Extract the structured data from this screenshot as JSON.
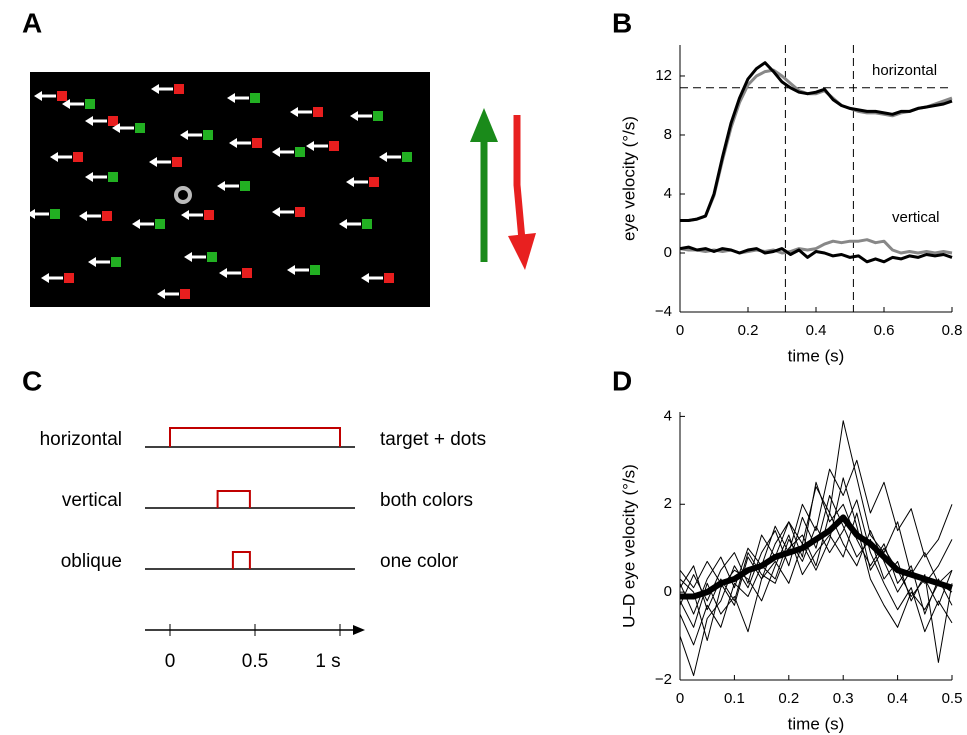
{
  "panel_a": {
    "label": "A"
  },
  "panel_c": {
    "label": "C",
    "xlim": [
      -0.15,
      1.15
    ],
    "xticks": [
      0,
      0.5,
      {
        "value": 1,
        "label": "1 s"
      }
    ],
    "rows": [
      {
        "label": "horizontal",
        "description": "target + dots",
        "on": 0,
        "off": 1
      },
      {
        "label": "vertical",
        "description": "both colors",
        "on": 0.28,
        "off": 0.47
      },
      {
        "label": "oblique",
        "description": "one color",
        "on": 0.37,
        "off": 0.47
      }
    ]
  },
  "chart_data": [
    {
      "type": "line",
      "label": "B",
      "xlabel": "time (s)",
      "ylabel": "eye velocity (°/s)",
      "xlim": [
        0,
        0.8
      ],
      "ylim": [
        -4,
        14.1
      ],
      "xticks": [
        0,
        0.2,
        0.4,
        0.6,
        0.8
      ],
      "yticks": [
        {
          "value": -4,
          "label": "−4"
        },
        0,
        4,
        8,
        12
      ],
      "hlines": [
        11.2
      ],
      "vlines": [
        0.31,
        0.51
      ],
      "annotations": [
        "horizontal",
        "vertical"
      ],
      "x": [
        0,
        0.025,
        0.05,
        0.075,
        0.1,
        0.125,
        0.15,
        0.175,
        0.2,
        0.225,
        0.25,
        0.275,
        0.3,
        0.325,
        0.35,
        0.375,
        0.4,
        0.425,
        0.45,
        0.475,
        0.5,
        0.525,
        0.55,
        0.575,
        0.6,
        0.625,
        0.65,
        0.675,
        0.7,
        0.725,
        0.75,
        0.775,
        0.8
      ],
      "series": [
        {
          "color": "#888888",
          "width": 3,
          "values": [
            2.2,
            2.2,
            2.3,
            2.5,
            3.9,
            6.3,
            8.5,
            10.2,
            11.4,
            12.0,
            12.3,
            12.4,
            12.0,
            11.5,
            11.0,
            10.8,
            10.8,
            11.0,
            10.5,
            10.0,
            9.8,
            9.6,
            9.5,
            9.5,
            9.4,
            9.3,
            9.5,
            9.6,
            9.8,
            9.9,
            10.1,
            10.3,
            10.5
          ]
        },
        {
          "color": "#000000",
          "width": 3,
          "values": [
            2.2,
            2.2,
            2.3,
            2.5,
            4.0,
            6.5,
            8.8,
            10.5,
            11.8,
            12.5,
            12.9,
            12.3,
            11.6,
            11.2,
            10.9,
            10.8,
            10.9,
            11.1,
            10.4,
            10.0,
            9.8,
            9.7,
            9.6,
            9.6,
            9.5,
            9.4,
            9.6,
            9.6,
            9.8,
            9.9,
            10.0,
            10.1,
            10.3
          ]
        },
        {
          "color": "#888888",
          "width": 3,
          "values": [
            0.3,
            0.2,
            0.2,
            0.1,
            0.2,
            0.1,
            0.2,
            0.0,
            0.1,
            0.2,
            0.1,
            0.2,
            0.0,
            0.1,
            0.3,
            0.2,
            0.3,
            0.6,
            0.8,
            0.7,
            0.8,
            0.8,
            0.9,
            0.7,
            0.8,
            0.2,
            0.0,
            0.1,
            0.0,
            0.1,
            0.0,
            0.1,
            0.0
          ]
        },
        {
          "color": "#000000",
          "width": 3,
          "values": [
            0.3,
            0.4,
            0.2,
            0.3,
            0.1,
            0.3,
            0.2,
            0.0,
            0.2,
            0.3,
            0.0,
            0.1,
            0.3,
            -0.1,
            0.2,
            -0.3,
            0.1,
            0.0,
            -0.2,
            -0.1,
            -0.3,
            -0.2,
            -0.6,
            -0.4,
            -0.6,
            -0.3,
            -0.4,
            -0.2,
            -0.3,
            -0.1,
            -0.2,
            -0.1,
            -0.3
          ]
        }
      ]
    },
    {
      "type": "line",
      "label": "D",
      "xlabel": "time (s)",
      "ylabel": "U–D eye velocity (°/s)",
      "xlim": [
        0,
        0.5
      ],
      "ylim": [
        -2,
        4.1
      ],
      "xticks": [
        0,
        0.1,
        0.2,
        0.3,
        0.4,
        0.5
      ],
      "yticks": [
        {
          "value": -2,
          "label": "−2"
        },
        0,
        2,
        4
      ],
      "x": [
        0,
        0.025,
        0.05,
        0.075,
        0.1,
        0.125,
        0.15,
        0.175,
        0.2,
        0.225,
        0.25,
        0.275,
        0.3,
        0.325,
        0.35,
        0.375,
        0.4,
        0.425,
        0.45,
        0.475,
        0.5
      ],
      "series": [
        {
          "color": "#000000",
          "width": 1,
          "values": [
            0.2,
            -0.5,
            0.3,
            0.8,
            0.1,
            1.0,
            0.6,
            1.5,
            0.9,
            2.0,
            1.4,
            2.8,
            2.2,
            3.0,
            1.8,
            2.5,
            1.4,
            1.9,
            0.8,
            1.2,
            2.0
          ]
        },
        {
          "color": "#000000",
          "width": 1,
          "values": [
            -0.3,
            0.4,
            -0.2,
            0.5,
            0.9,
            0.2,
            1.3,
            0.8,
            1.6,
            1.1,
            2.4,
            1.8,
            3.9,
            2.6,
            1.3,
            0.9,
            1.6,
            0.4,
            0.9,
            0.2,
            0.5
          ]
        },
        {
          "color": "#000000",
          "width": 1,
          "values": [
            -1.0,
            -1.9,
            -0.6,
            -0.2,
            0.6,
            0.1,
            0.9,
            1.4,
            0.6,
            1.7,
            1.0,
            2.2,
            1.5,
            0.8,
            1.2,
            0.3,
            0.7,
            -0.2,
            0.4,
            -1.6,
            0.2
          ]
        },
        {
          "color": "#000000",
          "width": 1,
          "values": [
            0.5,
            0.1,
            0.7,
            0.2,
            -0.3,
            0.8,
            0.3,
            1.1,
            1.6,
            0.8,
            2.5,
            1.6,
            2.0,
            1.2,
            0.6,
            1.1,
            0.2,
            0.6,
            -0.5,
            0.3,
            -0.3
          ]
        },
        {
          "color": "#000000",
          "width": 1,
          "values": [
            -0.5,
            -1.2,
            -0.3,
            -0.8,
            0.2,
            -0.1,
            0.6,
            0.3,
            1.2,
            0.7,
            1.5,
            0.9,
            1.4,
            2.1,
            0.9,
            0.2,
            -0.4,
            0.1,
            -0.9,
            -0.2,
            -0.7
          ]
        },
        {
          "color": "#000000",
          "width": 1,
          "values": [
            0.1,
            0.6,
            -0.4,
            0.3,
            -0.2,
            0.9,
            0.4,
            0.2,
            1.0,
            1.3,
            0.6,
            1.8,
            1.1,
            0.6,
            1.4,
            0.7,
            0.0,
            0.5,
            0.2,
            0.6,
            1.2
          ]
        },
        {
          "color": "#000000",
          "width": 1,
          "values": [
            -0.2,
            -0.8,
            0.2,
            -0.5,
            -0.1,
            -0.9,
            0.3,
            0.7,
            0.2,
            1.1,
            0.5,
            1.2,
            2.6,
            1.5,
            0.3,
            -0.3,
            -0.8,
            0.0,
            -0.4,
            0.2,
            0.0
          ]
        },
        {
          "color": "#000000",
          "width": 1,
          "values": [
            0.3,
            0.0,
            -1.1,
            0.1,
            0.5,
            0.3,
            -0.2,
            0.6,
            1.3,
            0.4,
            0.9,
            1.3,
            0.8,
            1.8,
            0.5,
            1.0,
            0.5,
            -0.1,
            0.3,
            -0.3,
            0.5
          ]
        },
        {
          "color": "#000000",
          "width": 6,
          "values": [
            -0.1,
            -0.1,
            0.0,
            0.2,
            0.3,
            0.5,
            0.6,
            0.8,
            0.9,
            1.0,
            1.2,
            1.4,
            1.7,
            1.3,
            1.1,
            0.8,
            0.5,
            0.4,
            0.3,
            0.2,
            0.1
          ]
        }
      ]
    }
  ]
}
